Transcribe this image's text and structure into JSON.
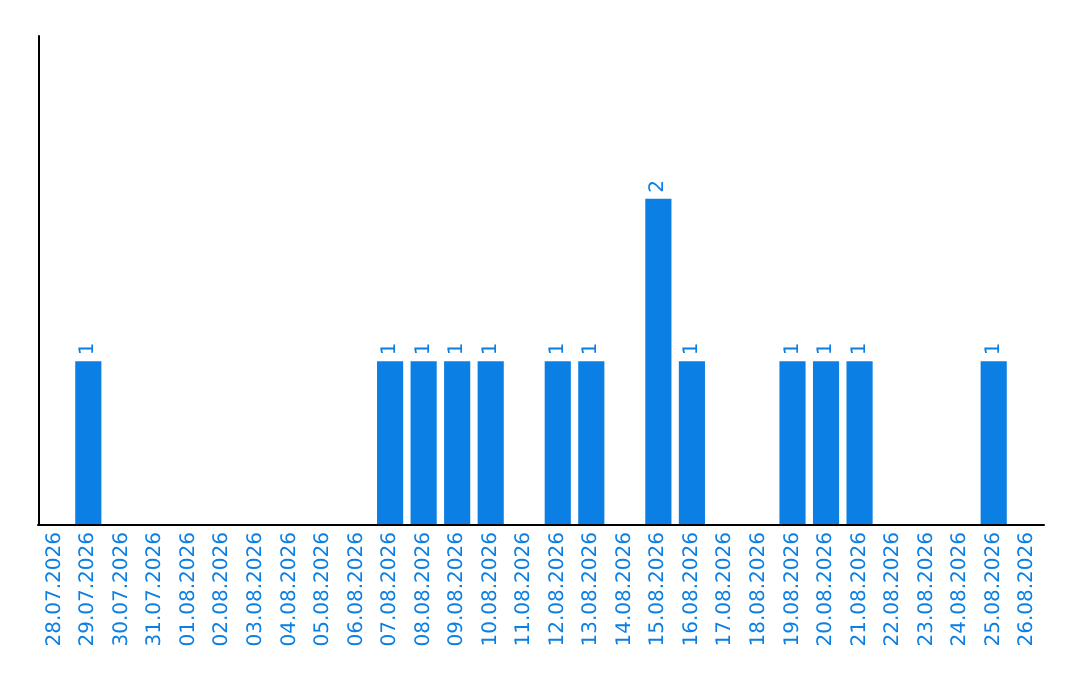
{
  "chart_data": {
    "type": "bar",
    "categories": [
      "28.07.2026",
      "29.07.2026",
      "30.07.2026",
      "31.07.2026",
      "01.08.2026",
      "02.08.2026",
      "03.08.2026",
      "04.08.2026",
      "05.08.2026",
      "06.08.2026",
      "07.08.2026",
      "08.08.2026",
      "09.08.2026",
      "10.08.2026",
      "11.08.2026",
      "12.08.2026",
      "13.08.2026",
      "14.08.2026",
      "15.08.2026",
      "16.08.2026",
      "17.08.2026",
      "18.08.2026",
      "19.08.2026",
      "20.08.2026",
      "21.08.2026",
      "22.08.2026",
      "23.08.2026",
      "24.08.2026",
      "25.08.2026",
      "26.08.2026"
    ],
    "values": [
      0,
      1,
      0,
      0,
      0,
      0,
      0,
      0,
      0,
      0,
      1,
      1,
      1,
      1,
      0,
      1,
      1,
      0,
      2,
      1,
      0,
      0,
      1,
      1,
      1,
      0,
      0,
      0,
      1,
      0
    ],
    "value_labels": [
      null,
      "1",
      null,
      null,
      null,
      null,
      null,
      null,
      null,
      null,
      "1",
      "1",
      "1",
      "1",
      null,
      "1",
      "1",
      null,
      "2",
      "1",
      null,
      null,
      "1",
      "1",
      "1",
      null,
      null,
      null,
      "1",
      null
    ],
    "color": "#0b7fe3",
    "ylim": [
      0,
      3
    ],
    "tick_labels": "x"
  }
}
